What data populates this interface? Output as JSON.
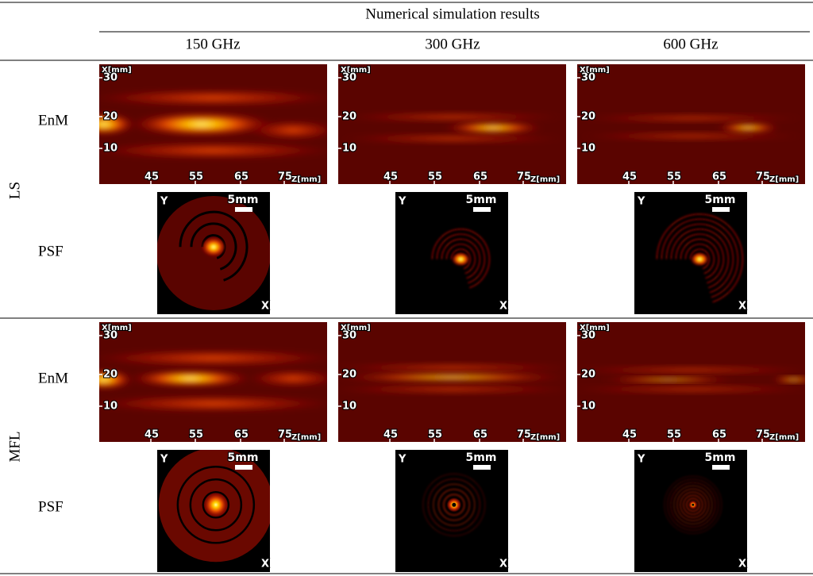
{
  "header": {
    "title": "Numerical simulation results",
    "columns": [
      "150 GHz",
      "300 GHz",
      "600 GHz"
    ]
  },
  "rows": [
    {
      "label": "LS",
      "enm": {
        "label": "EnM",
        "panels": [
          {
            "x_axis_label": "X[mm]",
            "x_ticks": [
              "30",
              "20",
              "10"
            ],
            "z_ticks": [
              "45",
              "55",
              "65",
              "75"
            ],
            "z_axis_label": "Z[mm]"
          },
          {
            "x_axis_label": "X[mm]",
            "x_ticks": [
              "30",
              "20",
              "10"
            ],
            "z_ticks": [
              "45",
              "55",
              "65",
              "75"
            ],
            "z_axis_label": "Z[mm]"
          },
          {
            "x_axis_label": "X[mm]",
            "x_ticks": [
              "30",
              "20",
              "10"
            ],
            "z_ticks": [
              "45",
              "55",
              "65",
              "75"
            ],
            "z_axis_label": "Z[mm]"
          }
        ]
      },
      "psf": {
        "label": "PSF",
        "panels": [
          {
            "y_label": "Y",
            "scale_bar": "5mm",
            "x_label": "X"
          },
          {
            "y_label": "Y",
            "scale_bar": "5mm",
            "x_label": "X"
          },
          {
            "y_label": "Y",
            "scale_bar": "5mm",
            "x_label": "X"
          }
        ]
      }
    },
    {
      "label": "MFL",
      "enm": {
        "label": "EnM",
        "panels": [
          {
            "x_axis_label": "X[mm]",
            "x_ticks": [
              "30",
              "20",
              "10"
            ],
            "z_ticks": [
              "45",
              "55",
              "65",
              "75"
            ],
            "z_axis_label": "Z[mm]"
          },
          {
            "x_axis_label": "X[mm]",
            "x_ticks": [
              "30",
              "20",
              "10"
            ],
            "z_ticks": [
              "45",
              "55",
              "65",
              "75"
            ],
            "z_axis_label": "Z[mm]"
          },
          {
            "x_axis_label": "X[mm]",
            "x_ticks": [
              "30",
              "20",
              "10"
            ],
            "z_ticks": [
              "45",
              "55",
              "65",
              "75"
            ],
            "z_axis_label": "Z[mm]"
          }
        ]
      },
      "psf": {
        "label": "PSF",
        "panels": [
          {
            "y_label": "Y",
            "scale_bar": "5mm",
            "x_label": "X"
          },
          {
            "y_label": "Y",
            "scale_bar": "5mm",
            "x_label": "X"
          },
          {
            "y_label": "Y",
            "scale_bar": "5mm",
            "x_label": "X"
          }
        ]
      }
    }
  ]
}
